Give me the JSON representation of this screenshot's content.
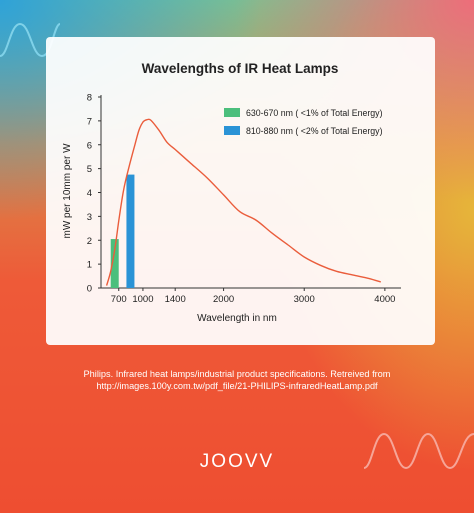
{
  "chart_data": {
    "type": "line",
    "title": "Wavelengths of IR Heat Lamps",
    "xlabel": "Wavelength in nm",
    "ylabel": "mW per 10mm per W",
    "xlim": [
      480,
      4200
    ],
    "ylim": [
      0,
      8
    ],
    "xticks": [
      700,
      1000,
      1400,
      2000,
      3000,
      4000
    ],
    "yticks": [
      0,
      1,
      2,
      3,
      4,
      5,
      6,
      7,
      8
    ],
    "grid": false,
    "legend_position": "top-right",
    "curve": {
      "color": "#ea5d3c",
      "points": [
        [
          550,
          0.1
        ],
        [
          600,
          0.7
        ],
        [
          650,
          1.6
        ],
        [
          700,
          2.8
        ],
        [
          760,
          4.1
        ],
        [
          830,
          5.1
        ],
        [
          900,
          6.0
        ],
        [
          950,
          6.6
        ],
        [
          1000,
          6.95
        ],
        [
          1050,
          7.05
        ],
        [
          1100,
          7.02
        ],
        [
          1200,
          6.6
        ],
        [
          1300,
          6.1
        ],
        [
          1400,
          5.8
        ],
        [
          1500,
          5.5
        ],
        [
          1600,
          5.2
        ],
        [
          1800,
          4.6
        ],
        [
          2000,
          3.9
        ],
        [
          2200,
          3.2
        ],
        [
          2400,
          2.85
        ],
        [
          2600,
          2.3
        ],
        [
          2800,
          1.8
        ],
        [
          3000,
          1.3
        ],
        [
          3200,
          0.95
        ],
        [
          3400,
          0.7
        ],
        [
          3600,
          0.55
        ],
        [
          3800,
          0.4
        ],
        [
          3950,
          0.25
        ]
      ]
    },
    "bars": [
      {
        "label": "630-670 nm ( <1% of Total Energy)",
        "x": 650,
        "value": 2.05,
        "color": "#4bbf7c"
      },
      {
        "label": "810-880 nm ( <2% of Total Energy)",
        "x": 845,
        "value": 4.75,
        "color": "#2a93d6"
      }
    ]
  },
  "source_lines": [
    "Philips. Infrared heat lamps/industrial product specifications. Retreived from",
    "http://images.100y.com.tw/pdf_file/21-PHILIPS-infraredHeatLamp.pdf"
  ],
  "brand": "JOOVV"
}
